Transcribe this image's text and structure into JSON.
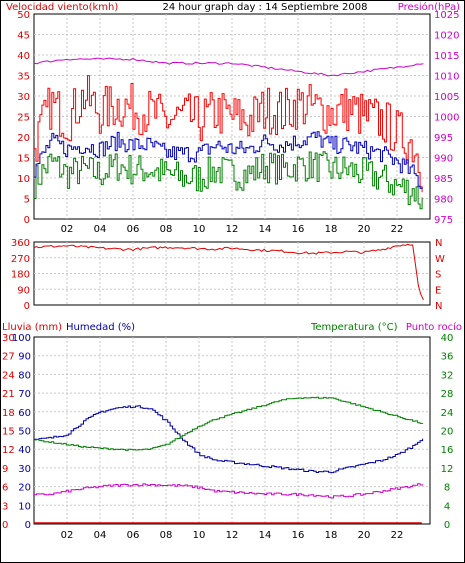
{
  "colors": {
    "wind": "#e00000",
    "gust": "#ff0000",
    "avgwind": "#0000c0",
    "wind_low": "#008000",
    "pressure": "#d000d0",
    "direction": "#e00000",
    "rain": "#e00000",
    "humidity": "#0000a0",
    "temperature": "#008000",
    "dewpoint": "#d000d0",
    "grid": "#c8c8c8",
    "axis_text_left": "#e00000"
  },
  "chart_data": [
    {
      "id": "wind_pressure",
      "type": "line",
      "title": "24 hour graph day : 14 Septiembre 2008",
      "ylabel_left": "Velocidad viento(kmh)",
      "ylabel_right": "Presión(hPa)",
      "x_ticks": [
        "02",
        "04",
        "06",
        "08",
        "10",
        "12",
        "14",
        "16",
        "18",
        "20",
        "22"
      ],
      "xlim": [
        0,
        24
      ],
      "ylim_left": [
        0,
        50
      ],
      "ylim_right": [
        975,
        1025
      ],
      "y_ticks_left": [
        "0",
        "5",
        "10",
        "15",
        "20",
        "25",
        "30",
        "35",
        "40",
        "45",
        "50"
      ],
      "y_ticks_right": [
        "975",
        "980",
        "985",
        "990",
        "995",
        "1000",
        "1005",
        "1010",
        "1015",
        "1020",
        "1025"
      ],
      "grid": true,
      "series": [
        {
          "key": "gust",
          "axis": "left",
          "x": [
            0,
            1,
            2,
            3,
            4,
            5,
            6,
            7,
            8,
            9,
            10,
            11,
            12,
            13,
            14,
            15,
            16,
            17,
            18,
            19,
            20,
            21,
            22,
            23,
            23.5
          ],
          "values": [
            18,
            28,
            24,
            30,
            26,
            28,
            27,
            26,
            24,
            25,
            24,
            26,
            25,
            24,
            27,
            26,
            28,
            27,
            26,
            27,
            25,
            24,
            21,
            18,
            12
          ]
        },
        {
          "key": "avgwind",
          "axis": "left",
          "x": [
            0,
            1,
            2,
            3,
            4,
            5,
            6,
            7,
            8,
            9,
            10,
            11,
            12,
            13,
            14,
            15,
            16,
            17,
            18,
            19,
            20,
            21,
            22,
            23,
            23.5
          ],
          "values": [
            12,
            19,
            17,
            18,
            17,
            19,
            18,
            18,
            16,
            16,
            16,
            18,
            17,
            17,
            19,
            18,
            19,
            20,
            18,
            18,
            17,
            16,
            14,
            11,
            8
          ]
        },
        {
          "key": "wind_low",
          "axis": "left",
          "x": [
            0,
            1,
            2,
            3,
            4,
            5,
            6,
            7,
            8,
            9,
            10,
            11,
            12,
            13,
            14,
            15,
            16,
            17,
            18,
            19,
            20,
            21,
            22,
            23,
            23.5
          ],
          "values": [
            9,
            14,
            11,
            12,
            11,
            13,
            12,
            12,
            11,
            10,
            10,
            12,
            11,
            11,
            13,
            12,
            13,
            13,
            12,
            12,
            11,
            10,
            8,
            7,
            4
          ]
        },
        {
          "key": "pressure",
          "axis": "right",
          "x": [
            0,
            2,
            4,
            6,
            8,
            10,
            12,
            14,
            16,
            18,
            20,
            22,
            23.5
          ],
          "values": [
            1013,
            1014,
            1014,
            1014,
            1013,
            1013,
            1013,
            1012,
            1011,
            1010,
            1011,
            1012,
            1013
          ]
        }
      ]
    },
    {
      "id": "direction",
      "type": "line",
      "y_ticks_left": [
        "0",
        "90",
        "180",
        "270",
        "360"
      ],
      "y_ticks_right": [
        "N",
        "E",
        "S",
        "W",
        "N"
      ],
      "ylim": [
        0,
        360
      ],
      "xlim": [
        0,
        24
      ],
      "grid": true,
      "series": [
        {
          "key": "direction",
          "x": [
            0,
            1,
            2,
            3,
            4,
            5,
            6,
            7,
            8,
            9,
            10,
            11,
            12,
            13,
            14,
            15,
            16,
            17,
            18,
            19,
            20,
            21,
            22,
            23,
            23.3,
            23.6
          ],
          "values": [
            330,
            335,
            338,
            332,
            325,
            320,
            318,
            325,
            330,
            328,
            322,
            320,
            325,
            318,
            312,
            308,
            300,
            295,
            300,
            305,
            300,
            315,
            340,
            350,
            110,
            30
          ]
        }
      ]
    },
    {
      "id": "temp_humidity",
      "type": "line",
      "ylabel_left": "Lluvia (mm)",
      "ylabel_left2": "Humedad (%)",
      "ylabel_right": "Temperatura (°C)",
      "ylabel_right2": "Punto rocío",
      "x_ticks": [
        "02",
        "04",
        "06",
        "08",
        "10",
        "12",
        "14",
        "16",
        "18",
        "20",
        "22"
      ],
      "xlim": [
        0,
        24
      ],
      "y_ticks_rain": [
        "0",
        "3",
        "6",
        "9",
        "12",
        "15",
        "18",
        "21",
        "24",
        "27",
        "30"
      ],
      "y_ticks_humidity": [
        "0",
        "10",
        "20",
        "30",
        "40",
        "50",
        "60",
        "70",
        "80",
        "90",
        "100"
      ],
      "y_ticks_temp": [
        "0",
        "4",
        "8",
        "12",
        "16",
        "20",
        "24",
        "28",
        "32",
        "36",
        "40"
      ],
      "ylim_humidity": [
        0,
        100
      ],
      "ylim_temp": [
        0,
        40
      ],
      "grid": true,
      "series": [
        {
          "key": "humidity",
          "axis": "humidity",
          "x": [
            0,
            1,
            2,
            3,
            4,
            5,
            6,
            7,
            8,
            9,
            10,
            11,
            12,
            13,
            14,
            15,
            16,
            17,
            18,
            19,
            20,
            21,
            22,
            23,
            23.5
          ],
          "values": [
            45,
            46,
            48,
            55,
            60,
            62,
            63,
            62,
            55,
            45,
            37,
            34,
            33,
            32,
            31,
            30,
            29,
            28,
            28,
            30,
            32,
            34,
            37,
            42,
            46
          ]
        },
        {
          "key": "temperature",
          "axis": "temp",
          "x": [
            0,
            1,
            2,
            3,
            4,
            5,
            6,
            7,
            8,
            9,
            10,
            11,
            12,
            13,
            14,
            15,
            16,
            17,
            18,
            19,
            20,
            21,
            22,
            23,
            23.5
          ],
          "values": [
            18,
            17.5,
            17,
            16.5,
            16.2,
            16,
            15.8,
            16,
            17,
            19,
            21,
            22.5,
            23.5,
            24.5,
            25.5,
            26.5,
            27,
            27,
            27,
            26,
            25,
            24,
            23,
            22,
            21.5
          ]
        },
        {
          "key": "dewpoint",
          "axis": "temp",
          "x": [
            0,
            1,
            2,
            3,
            4,
            5,
            6,
            7,
            8,
            9,
            10,
            11,
            12,
            13,
            14,
            15,
            16,
            17,
            18,
            19,
            20,
            21,
            22,
            23,
            23.5
          ],
          "values": [
            6.2,
            6.4,
            7,
            7.6,
            8,
            8.3,
            8.4,
            8.4,
            8.3,
            8.2,
            7.8,
            7,
            6.8,
            6.6,
            6.4,
            6.4,
            6.3,
            6.2,
            5.8,
            6,
            6.4,
            7,
            7.6,
            8.2,
            8.6
          ]
        },
        {
          "key": "rain",
          "axis": "rain",
          "x": [
            0,
            23.5
          ],
          "values": [
            0,
            0
          ]
        }
      ]
    }
  ]
}
